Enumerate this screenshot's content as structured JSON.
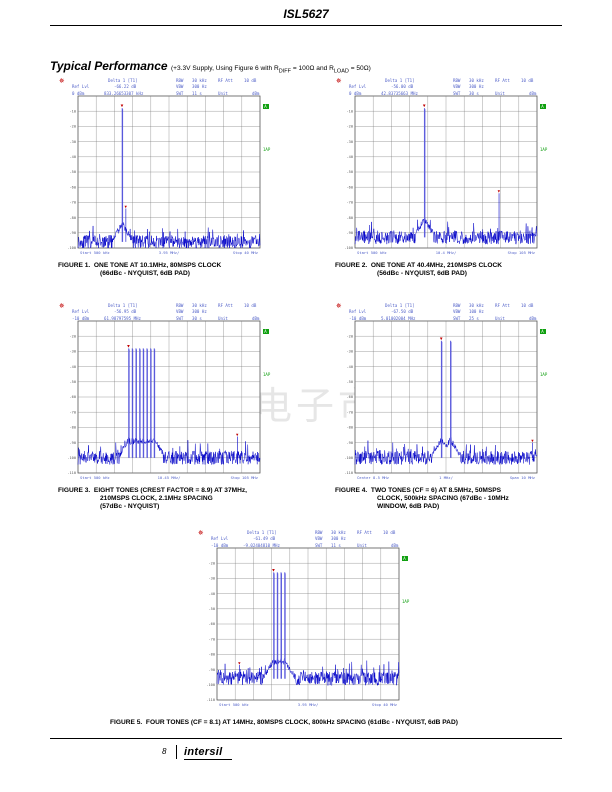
{
  "header": {
    "title": "ISL5627"
  },
  "section": {
    "title": "Typical Performance",
    "subtitle_pre": "(+3.3V Supply, Using Figure 6 with R",
    "sub1": "DIFF",
    "subtitle_mid": " = 100Ω and R",
    "sub2": "LOAD",
    "subtitle_post": " = 50Ω)"
  },
  "watermark": "维库电子市场网",
  "analyzer_labels": {
    "ref_lvl": "Ref Lvl",
    "rbw": "RBW",
    "vbw": "VBW",
    "swt": "SWT",
    "rf_att": "RF Att",
    "unit": "Unit",
    "dbm": "dBm",
    "badge_a": "A",
    "badge_1ap": "1AP"
  },
  "figures": [
    {
      "caption_num": "FIGURE 1.",
      "caption_lines": [
        "ONE TONE AT 10.1MHz, 80MSPS CLOCK",
        "(66dBc - NYQUIST, 6dB PAD)"
      ],
      "delta_label": "Delta 1 [T1]",
      "delta_db": "-66.22 dB",
      "delta_freq": "833.26653307 kHz",
      "ref_level": "0 dBm",
      "rbw": "30 kHz",
      "vbw": "300 Hz",
      "swt": "11 s",
      "rf_att": "10 dB",
      "x_start": "Start 500 kHz",
      "x_div": "3.95 MHz/",
      "x_stop": "Stop 40 MHz",
      "y_ticks": [
        "-10",
        "-20",
        "-30",
        "-40",
        "-50",
        "-60",
        "-70",
        "-80",
        "-90",
        "-100"
      ],
      "chart_data": {
        "type": "line",
        "x_range_mhz": [
          0.5,
          40
        ],
        "y_range_dbm": [
          -100,
          0
        ],
        "tones_mhz": [
          10.1
        ],
        "tone_level_dbm": -8,
        "spur_marker_dbm": -74,
        "noise_floor_dbm": -96
      }
    },
    {
      "caption_num": "FIGURE 2.",
      "caption_lines": [
        "ONE TONE AT 40.4MHz, 210MSPS CLOCK",
        "(56dBc - NYQUIST, 6dB PAD)"
      ],
      "delta_label": "Delta 1 [T1]",
      "delta_db": "-56.00 dB",
      "delta_freq": "42.83735663 MHz",
      "ref_level": "0 dBm",
      "rbw": "30 kHz",
      "vbw": "300 Hz",
      "swt": "30 s",
      "rf_att": "10 dB",
      "x_start": "Start 500 kHz",
      "x_div": "10.4 MHz/",
      "x_stop": "Stop 105 MHz",
      "y_ticks": [
        "-10",
        "-20",
        "-30",
        "-40",
        "-50",
        "-60",
        "-70",
        "-80",
        "-90",
        "-100"
      ],
      "chart_data": {
        "type": "line",
        "x_range_mhz": [
          0.5,
          105
        ],
        "y_range_dbm": [
          -100,
          0
        ],
        "tones_mhz": [
          40.4
        ],
        "tone_level_dbm": -8,
        "spur_marker_dbm": -64,
        "spur_mhz": 83.2,
        "noise_floor_dbm": -93
      }
    },
    {
      "caption_num": "FIGURE 3.",
      "caption_lines": [
        "EIGHT TONES (CREST FACTOR = 8.9) AT 37MHz,",
        "210MSPS CLOCK, 2.1MHz SPACING",
        "(57dBc - NYQUIST)"
      ],
      "delta_label": "Delta 1 [T1]",
      "delta_db": "-56.95 dB",
      "delta_freq": "61.98797595 MHz",
      "ref_level": "-10 dBm",
      "rbw": "30 kHz",
      "vbw": "300 Hz",
      "swt": "30 s",
      "rf_att": "10 dB",
      "x_start": "Start 500 kHz",
      "x_div": "10.45 MHz/",
      "x_stop": "Stop 105 MHz",
      "y_ticks": [
        "-20",
        "-30",
        "-40",
        "-50",
        "-60",
        "-70",
        "-80",
        "-90",
        "-100",
        "-110"
      ],
      "chart_data": {
        "type": "line",
        "x_range_mhz": [
          0.5,
          105
        ],
        "y_range_dbm": [
          -110,
          -10
        ],
        "tones_mhz": [
          29.6,
          31.7,
          33.8,
          35.9,
          38.0,
          40.1,
          42.2,
          44.3
        ],
        "tone_level_dbm": -28,
        "spur_marker_dbm": -86,
        "spur_mhz": 92,
        "noise_floor_dbm": -100
      }
    },
    {
      "caption_num": "FIGURE 4.",
      "caption_lines": [
        "TWO TONES (CF = 6) AT 8.5MHz, 50MSPS",
        "CLOCK, 500kHz SPACING (67dBc - 10MHz",
        "WINDOW, 6dB PAD)"
      ],
      "delta_label": "Delta 1 [T1]",
      "delta_db": "-67.50 dB",
      "delta_freq": "5.01002004 MHz",
      "ref_level": "-10 dBm",
      "rbw": "30 kHz",
      "vbw": "100 Hz",
      "swt": "25 s",
      "rf_att": "10 dB",
      "x_start": "Center 8.5 MHz",
      "x_div": "1 MHz/",
      "x_stop": "Span 10 MHz",
      "y_ticks": [
        "-20",
        "-30",
        "-40",
        "-50",
        "-60",
        "-70",
        "-80",
        "-90",
        "-100",
        "-110"
      ],
      "chart_data": {
        "type": "line",
        "x_range_mhz": [
          3.5,
          13.5
        ],
        "y_range_dbm": [
          -110,
          -10
        ],
        "tones_mhz": [
          8.25,
          8.75
        ],
        "tone_level_dbm": -23,
        "spur_marker_dbm": -90,
        "spur_mhz": 13.26,
        "noise_floor_dbm": -100
      }
    },
    {
      "caption_num": "FIGURE 5.",
      "caption_lines": [
        "FOUR TONES (CF = 8.1) AT 14MHz, 80MSPS CLOCK, 800kHz SPACING (61dBc - NYQUIST, 6dB PAD)"
      ],
      "delta_label": "Delta 1 [T1]",
      "delta_db": "-61.49 dB",
      "delta_freq": "-9.02404810 MHz",
      "ref_level": "-10 dBm",
      "rbw": "30 kHz",
      "vbw": "300 Hz",
      "swt": "11 s",
      "rf_att": "10 dB",
      "x_start": "Start 500 kHz",
      "x_div": "3.95 MHz/",
      "x_stop": "Stop 40 MHz",
      "y_ticks": [
        "-20",
        "-30",
        "-40",
        "-50",
        "-60",
        "-70",
        "-80",
        "-90",
        "-100",
        "-110"
      ],
      "chart_data": {
        "type": "line",
        "x_range_mhz": [
          0.5,
          40
        ],
        "y_range_dbm": [
          -110,
          -10
        ],
        "tones_mhz": [
          12.8,
          13.6,
          14.4,
          15.2
        ],
        "tone_level_dbm": -26,
        "spur_marker_dbm": -87,
        "spur_mhz": 5.4,
        "noise_floor_dbm": -96
      }
    }
  ],
  "footer": {
    "page_number": "8",
    "logo": "intersil"
  }
}
